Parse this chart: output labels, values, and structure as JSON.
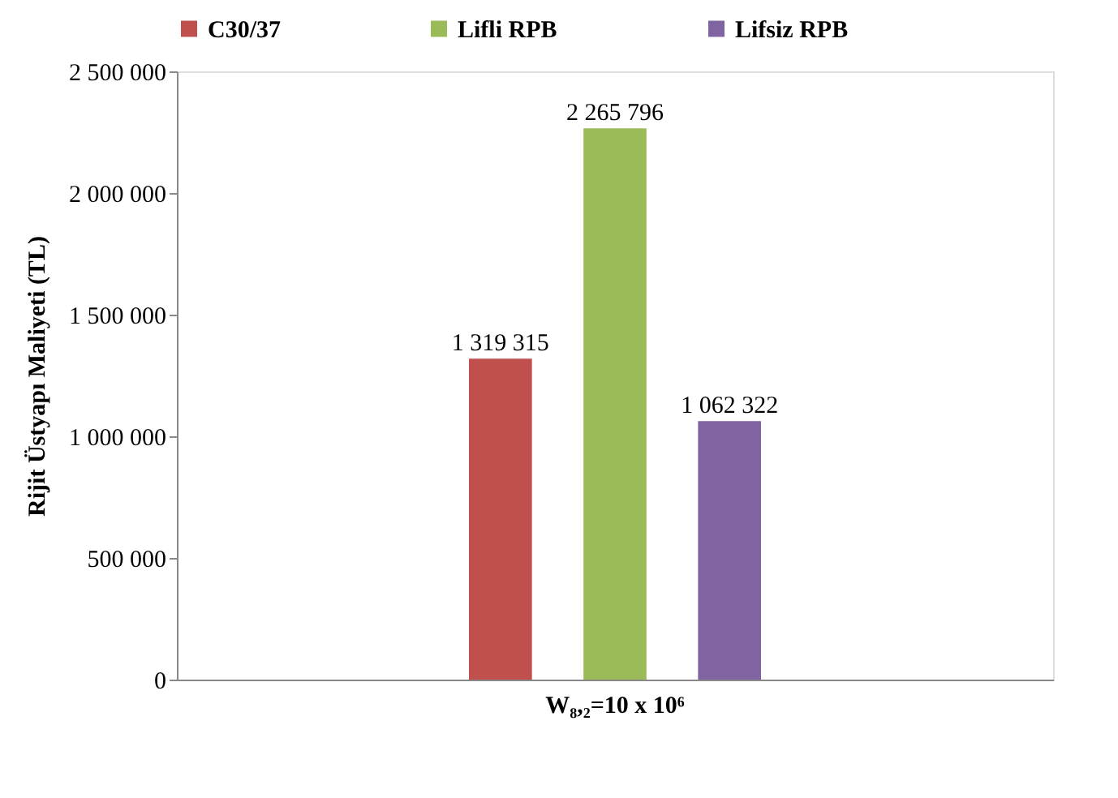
{
  "chart_data": {
    "type": "bar",
    "categories": [
      "W₈,₂=10 x 10⁶"
    ],
    "ylabel": "Rijit Üstyapı Maliyeti (TL)",
    "series": [
      {
        "name": "C30/37",
        "color": "#c0504d",
        "values": [
          1319315
        ],
        "value_labels": [
          "1 319 315"
        ]
      },
      {
        "name": "Lifli RPB",
        "color": "#9bbb59",
        "values": [
          2265796
        ],
        "value_labels": [
          "2 265 796"
        ]
      },
      {
        "name": "Lifsiz RPB",
        "color": "#8064a2",
        "values": [
          1062322
        ],
        "value_labels": [
          "1 062 322"
        ]
      }
    ],
    "ylim": [
      0,
      2500000
    ],
    "yticks": [
      0,
      {
        "value": 500000,
        "label": "500 000"
      },
      {
        "value": 1000000,
        "label": "1 000 000"
      },
      {
        "value": 1500000,
        "label": "1 500 000"
      },
      {
        "value": 2000000,
        "label": "2 000 000"
      },
      {
        "value": 2500000,
        "label": "2 500 000"
      }
    ],
    "grid": false,
    "legend": "top"
  }
}
